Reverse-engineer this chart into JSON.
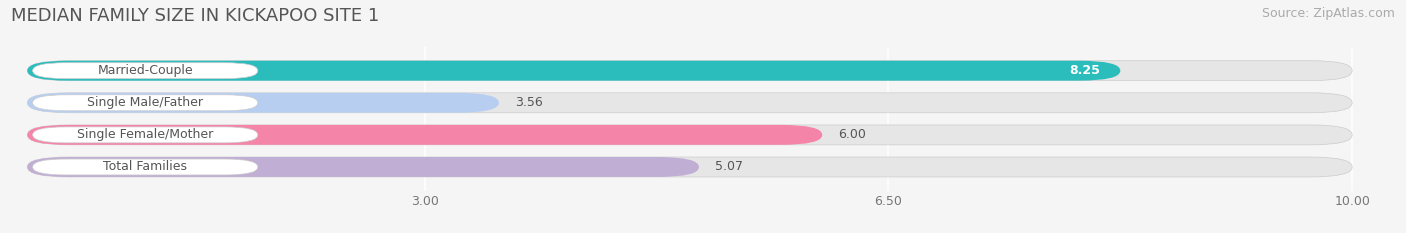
{
  "title": "MEDIAN FAMILY SIZE IN KICKAPOO SITE 1",
  "source": "Source: ZipAtlas.com",
  "categories": [
    "Married-Couple",
    "Single Male/Father",
    "Single Female/Mother",
    "Total Families"
  ],
  "values": [
    8.25,
    3.56,
    6.0,
    5.07
  ],
  "bar_colors": [
    "#2bbcbc",
    "#b8cef0",
    "#f585a8",
    "#c0aed4"
  ],
  "x_min": 0,
  "x_max": 10.0,
  "x_ticks": [
    3.0,
    6.5,
    10.0
  ],
  "x_tick_labels": [
    "3.00",
    "6.50",
    "10.00"
  ],
  "bar_height": 0.62,
  "background_color": "#f5f5f5",
  "bar_bg_color": "#e6e6e6",
  "title_fontsize": 13,
  "source_fontsize": 9,
  "label_fontsize": 9,
  "value_fontsize": 9,
  "value_colors": [
    "#ffffff",
    "#555555",
    "#555555",
    "#555555"
  ]
}
